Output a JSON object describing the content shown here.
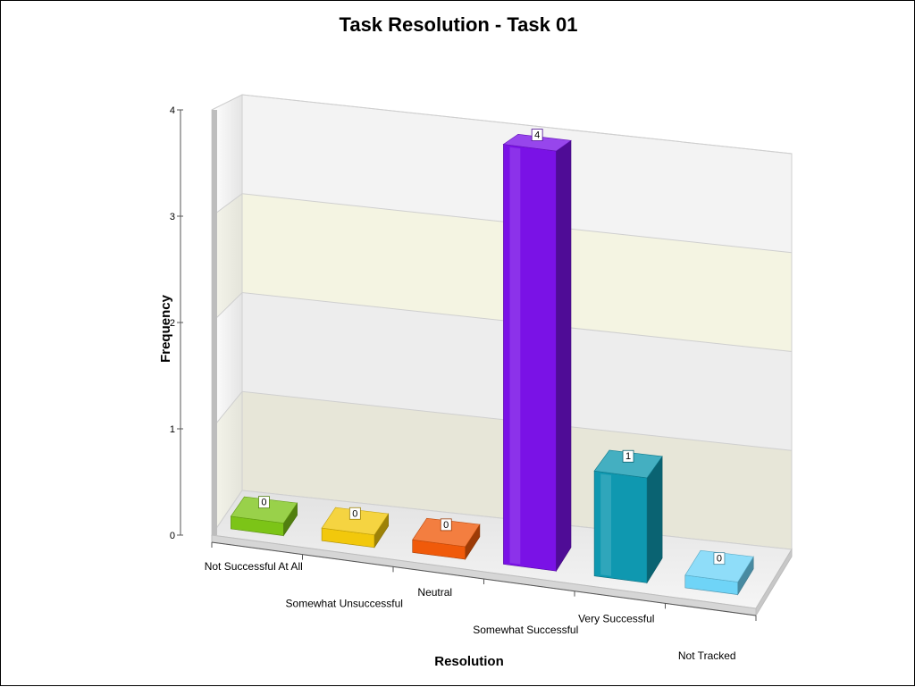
{
  "chart_data": {
    "type": "bar",
    "title": "Task Resolution - Task 01",
    "xlabel": "Resolution",
    "ylabel": "Frequency",
    "categories": [
      "Not Successful At All",
      "Somewhat Unsuccessful",
      "Neutral",
      "Somewhat Successful",
      "Very Successful",
      "Not Tracked"
    ],
    "values": [
      0,
      0,
      0,
      4,
      1,
      0
    ],
    "ylim": [
      0,
      4
    ],
    "yticks": [
      0,
      1,
      2,
      3,
      4
    ],
    "colors": [
      "#7cc417",
      "#f2c80c",
      "#f05a0a",
      "#7a12e6",
      "#0f98b0",
      "#6fd4f7"
    ],
    "grid": true,
    "legend": "none",
    "data_labels": true,
    "style": "3d"
  }
}
